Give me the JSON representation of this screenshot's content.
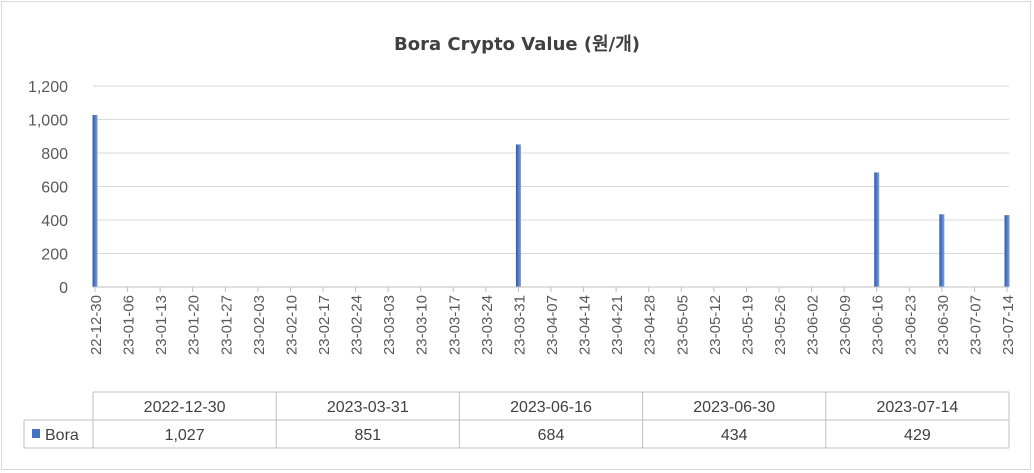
{
  "chart_data": {
    "type": "bar",
    "title": "Bora Crypto Value (원/개)",
    "ylim": [
      0,
      1200
    ],
    "yticks": [
      "0",
      "200",
      "400",
      "600",
      "800",
      "1,000",
      "1,200"
    ],
    "x_tick_labels": [
      "22-12-30",
      "23-01-06",
      "23-01-13",
      "23-01-20",
      "23-01-27",
      "23-02-03",
      "23-02-10",
      "23-02-17",
      "23-02-24",
      "23-03-03",
      "23-03-10",
      "23-03-17",
      "23-03-24",
      "23-03-31",
      "23-04-07",
      "23-04-14",
      "23-04-21",
      "23-04-28",
      "23-05-05",
      "23-05-12",
      "23-05-19",
      "23-05-26",
      "23-06-02",
      "23-06-09",
      "23-06-16",
      "23-06-23",
      "23-06-30",
      "23-07-07",
      "23-07-14"
    ],
    "x_start": "2022-12-30",
    "x_end": "2023-07-14",
    "categories": [
      "2022-12-30",
      "2023-03-31",
      "2023-06-16",
      "2023-06-30",
      "2023-07-14"
    ],
    "series": [
      {
        "name": "Bora",
        "values": [
          1027,
          851,
          684,
          434,
          429
        ],
        "value_labels": [
          "1,027",
          "851",
          "684",
          "434",
          "429"
        ]
      }
    ],
    "bar_color": "#4472c4",
    "grid": true,
    "legend": "data-table"
  }
}
